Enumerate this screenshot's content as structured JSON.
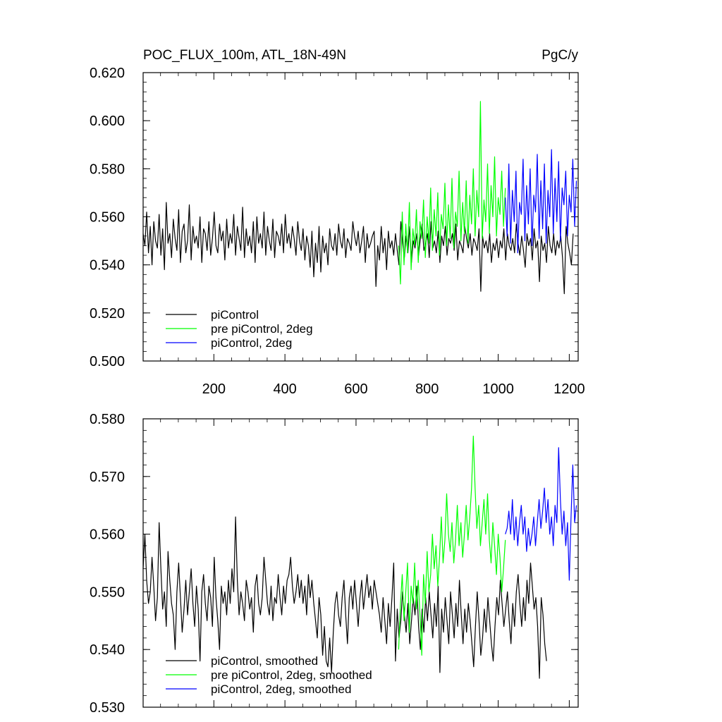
{
  "figure": {
    "title_left": "POC_FLUX_100m, ATL_18N-49N",
    "title_right": "PgC/y"
  },
  "chart_data": [
    {
      "type": "line",
      "title": "POC_FLUX_100m, ATL_18N-49N",
      "units": "PgC/y",
      "xlim": [
        1,
        1225
      ],
      "ylim": [
        0.5,
        0.62
      ],
      "xticks": [
        200,
        400,
        600,
        800,
        1000,
        1200
      ],
      "xtick_labels": [
        "200",
        "400",
        "600",
        "800",
        "1000",
        "1200"
      ],
      "yticks": [
        0.5,
        0.52,
        0.54,
        0.56,
        0.58,
        0.6,
        0.62
      ],
      "ytick_labels": [
        "0.500",
        "0.520",
        "0.540",
        "0.560",
        "0.580",
        "0.600",
        "0.620"
      ],
      "grid": false,
      "legend_position": "bottom-left",
      "series": [
        {
          "name": "piControl",
          "color": "#000000",
          "x_start": 1,
          "x_end": 1220,
          "step": 5,
          "values": [
            0.553,
            0.548,
            0.562,
            0.545,
            0.556,
            0.54,
            0.558,
            0.55,
            0.547,
            0.561,
            0.544,
            0.555,
            0.538,
            0.566,
            0.549,
            0.553,
            0.543,
            0.559,
            0.551,
            0.546,
            0.563,
            0.541,
            0.554,
            0.557,
            0.545,
            0.55,
            0.565,
            0.542,
            0.556,
            0.549,
            0.552,
            0.547,
            0.56,
            0.541,
            0.555,
            0.553,
            0.546,
            0.558,
            0.544,
            0.551,
            0.562,
            0.548,
            0.545,
            0.557,
            0.55,
            0.554,
            0.542,
            0.559,
            0.547,
            0.553,
            0.549,
            0.561,
            0.544,
            0.556,
            0.551,
            0.546,
            0.564,
            0.543,
            0.555,
            0.548,
            0.552,
            0.545,
            0.558,
            0.541,
            0.56,
            0.549,
            0.553,
            0.547,
            0.562,
            0.544,
            0.556,
            0.55,
            0.546,
            0.559,
            0.543,
            0.554,
            0.552,
            0.548,
            0.557,
            0.545,
            0.561,
            0.549,
            0.553,
            0.547,
            0.556,
            0.551,
            0.544,
            0.558,
            0.55,
            0.546,
            0.555,
            0.542,
            0.552,
            0.548,
            0.539,
            0.554,
            0.535,
            0.549,
            0.541,
            0.556,
            0.537,
            0.552,
            0.545,
            0.549,
            0.54,
            0.555,
            0.548,
            0.546,
            0.553,
            0.544,
            0.557,
            0.55,
            0.547,
            0.555,
            0.543,
            0.551,
            0.549,
            0.546,
            0.558,
            0.552,
            0.548,
            0.554,
            0.545,
            0.55,
            0.556,
            0.541,
            0.553,
            0.547,
            0.549,
            0.552,
            0.554,
            0.531,
            0.548,
            0.542,
            0.556,
            0.545,
            0.551,
            0.538,
            0.554,
            0.547,
            0.55,
            0.544,
            0.553,
            0.546,
            0.54,
            0.558,
            0.549,
            0.543,
            0.552,
            0.545,
            0.556,
            0.541,
            0.55,
            0.547,
            0.553,
            0.544,
            0.551,
            0.557,
            0.546,
            0.549,
            0.553,
            0.543,
            0.558,
            0.547,
            0.55,
            0.545,
            0.554,
            0.541,
            0.552,
            0.548,
            0.556,
            0.544,
            0.551,
            0.549,
            0.553,
            0.546,
            0.557,
            0.542,
            0.55,
            0.548,
            0.545,
            0.556,
            0.551,
            0.547,
            0.553,
            0.544,
            0.551,
            0.549,
            0.546,
            0.555,
            0.529,
            0.552,
            0.547,
            0.55,
            0.545,
            0.553,
            0.541,
            0.549,
            0.546,
            0.551,
            0.543,
            0.55,
            0.547,
            0.555,
            0.542,
            0.553,
            0.548,
            0.546,
            0.551,
            0.545,
            0.557,
            0.549,
            0.544,
            0.552,
            0.546,
            0.539,
            0.553,
            0.548,
            0.551,
            0.542,
            0.555,
            0.547,
            0.55,
            0.533,
            0.552,
            0.546,
            0.549,
            0.541,
            0.556,
            0.548,
            0.545,
            0.553,
            0.544,
            0.55,
            0.547,
            0.552,
            0.543,
            0.528,
            0.556,
            0.549,
            0.545,
            0.54,
            0.553
          ]
        },
        {
          "name": "pre piControl, 2deg",
          "color": "#00ff00",
          "x_start": 720,
          "x_end": 1020,
          "step": 5,
          "values": [
            0.548,
            0.532,
            0.562,
            0.54,
            0.557,
            0.545,
            0.566,
            0.538,
            0.555,
            0.548,
            0.563,
            0.541,
            0.558,
            0.551,
            0.567,
            0.543,
            0.56,
            0.549,
            0.572,
            0.546,
            0.563,
            0.552,
            0.57,
            0.544,
            0.561,
            0.555,
            0.574,
            0.548,
            0.565,
            0.551,
            0.576,
            0.547,
            0.562,
            0.556,
            0.579,
            0.55,
            0.566,
            0.553,
            0.575,
            0.549,
            0.569,
            0.557,
            0.58,
            0.552,
            0.571,
            0.56,
            0.608,
            0.551,
            0.567,
            0.558,
            0.582,
            0.553,
            0.573,
            0.56,
            0.585,
            0.552,
            0.568,
            0.561,
            0.579,
            0.556,
            0.572
          ]
        },
        {
          "name": "piControl, 2deg",
          "color": "#0000ff",
          "x_start": 1020,
          "x_end": 1220,
          "step": 5,
          "values": [
            0.568,
            0.552,
            0.582,
            0.549,
            0.571,
            0.558,
            0.579,
            0.545,
            0.566,
            0.561,
            0.584,
            0.55,
            0.573,
            0.557,
            0.58,
            0.548,
            0.569,
            0.562,
            0.586,
            0.551,
            0.575,
            0.555,
            0.582,
            0.549,
            0.571,
            0.56,
            0.588,
            0.553,
            0.576,
            0.558,
            0.583,
            0.55,
            0.572,
            0.565,
            0.579,
            0.552,
            0.569,
            0.562,
            0.584,
            0.556,
            0.575
          ]
        }
      ],
      "legend": [
        {
          "label": "piControl",
          "color": "#000000"
        },
        {
          "label": "pre piControl, 2deg",
          "color": "#00ff00"
        },
        {
          "label": "piControl, 2deg",
          "color": "#0000ff"
        }
      ]
    },
    {
      "type": "line",
      "xlim": [
        1,
        1225
      ],
      "ylim": [
        0.53,
        0.58
      ],
      "xticks": [
        200,
        400,
        600,
        800,
        1000,
        1200
      ],
      "yticks": [
        0.53,
        0.54,
        0.55,
        0.56,
        0.57,
        0.58
      ],
      "ytick_labels": [
        "0.530",
        "0.540",
        "0.550",
        "0.560",
        "0.570",
        "0.580"
      ],
      "grid": false,
      "legend_position": "bottom-left",
      "series": [
        {
          "name": "piControl, smoothed",
          "color": "#000000",
          "x_start": 1,
          "x_end": 1220,
          "step": 5,
          "values": [
            0.554,
            0.56,
            0.552,
            0.548,
            0.55,
            0.556,
            0.551,
            0.545,
            0.549,
            0.562,
            0.554,
            0.547,
            0.55,
            0.544,
            0.557,
            0.552,
            0.548,
            0.546,
            0.54,
            0.55,
            0.555,
            0.549,
            0.543,
            0.547,
            0.552,
            0.546,
            0.55,
            0.554,
            0.548,
            0.544,
            0.551,
            0.547,
            0.538,
            0.55,
            0.553,
            0.548,
            0.545,
            0.551,
            0.549,
            0.544,
            0.556,
            0.549,
            0.545,
            0.54,
            0.551,
            0.548,
            0.55,
            0.546,
            0.552,
            0.548,
            0.554,
            0.55,
            0.563,
            0.552,
            0.546,
            0.55,
            0.548,
            0.545,
            0.552,
            0.55,
            0.547,
            0.549,
            0.543,
            0.551,
            0.553,
            0.548,
            0.546,
            0.549,
            0.556,
            0.552,
            0.548,
            0.546,
            0.551,
            0.545,
            0.549,
            0.548,
            0.553,
            0.549,
            0.546,
            0.551,
            0.548,
            0.552,
            0.553,
            0.556,
            0.551,
            0.548,
            0.55,
            0.553,
            0.549,
            0.552,
            0.548,
            0.551,
            0.546,
            0.553,
            0.549,
            0.552,
            0.548,
            0.545,
            0.542,
            0.549,
            0.546,
            0.539,
            0.544,
            0.538,
            0.537,
            0.542,
            0.536,
            0.543,
            0.548,
            0.55,
            0.546,
            0.544,
            0.549,
            0.552,
            0.546,
            0.541,
            0.549,
            0.551,
            0.547,
            0.552,
            0.548,
            0.544,
            0.549,
            0.552,
            0.547,
            0.55,
            0.553,
            0.549,
            0.551,
            0.547,
            0.552,
            0.55,
            0.548,
            0.546,
            0.543,
            0.549,
            0.545,
            0.541,
            0.548,
            0.544,
            0.549,
            0.555,
            0.538,
            0.547,
            0.542,
            0.545,
            0.55,
            0.546,
            0.543,
            0.548,
            0.541,
            0.545,
            0.549,
            0.546,
            0.551,
            0.544,
            0.54,
            0.547,
            0.543,
            0.549,
            0.545,
            0.55,
            0.546,
            0.542,
            0.548,
            0.544,
            0.551,
            0.536,
            0.547,
            0.543,
            0.549,
            0.545,
            0.541,
            0.55,
            0.546,
            0.542,
            0.548,
            0.544,
            0.552,
            0.546,
            0.541,
            0.547,
            0.543,
            0.548,
            0.545,
            0.541,
            0.537,
            0.544,
            0.55,
            0.545,
            0.539,
            0.542,
            0.547,
            0.543,
            0.549,
            0.545,
            0.541,
            0.538,
            0.544,
            0.549,
            0.546,
            0.552,
            0.548,
            0.544,
            0.547,
            0.55,
            0.545,
            0.541,
            0.548,
            0.544,
            0.55,
            0.553,
            0.548,
            0.544,
            0.549,
            0.545,
            0.552,
            0.548,
            0.555,
            0.551,
            0.547,
            0.549,
            0.544,
            0.535,
            0.549,
            0.546,
            0.541,
            0.538
          ]
        },
        {
          "name": "pre piControl, 2deg, smoothed",
          "color": "#00ff00",
          "x_start": 720,
          "x_end": 1020,
          "step": 5,
          "values": [
            0.54,
            0.548,
            0.553,
            0.545,
            0.55,
            0.555,
            0.543,
            0.551,
            0.548,
            0.555,
            0.547,
            0.552,
            0.546,
            0.539,
            0.553,
            0.548,
            0.557,
            0.55,
            0.553,
            0.56,
            0.554,
            0.558,
            0.551,
            0.556,
            0.563,
            0.555,
            0.559,
            0.567,
            0.56,
            0.557,
            0.562,
            0.555,
            0.559,
            0.565,
            0.558,
            0.562,
            0.556,
            0.56,
            0.565,
            0.559,
            0.563,
            0.568,
            0.577,
            0.568,
            0.561,
            0.565,
            0.558,
            0.562,
            0.566,
            0.56,
            0.567,
            0.559,
            0.555,
            0.562,
            0.558,
            0.553,
            0.56,
            0.556,
            0.55,
            0.554,
            0.559
          ]
        },
        {
          "name": "piControl, 2deg, smoothed",
          "color": "#0000ff",
          "x_start": 1020,
          "x_end": 1220,
          "step": 5,
          "values": [
            0.56,
            0.561,
            0.564,
            0.56,
            0.566,
            0.559,
            0.563,
            0.558,
            0.562,
            0.565,
            0.56,
            0.563,
            0.557,
            0.561,
            0.558,
            0.56,
            0.563,
            0.558,
            0.562,
            0.566,
            0.561,
            0.564,
            0.568,
            0.562,
            0.566,
            0.56,
            0.563,
            0.558,
            0.565,
            0.562,
            0.575,
            0.566,
            0.56,
            0.564,
            0.558,
            0.562,
            0.552,
            0.563,
            0.572,
            0.562,
            0.565
          ]
        }
      ],
      "legend": [
        {
          "label": "piControl, smoothed",
          "color": "#000000"
        },
        {
          "label": "pre piControl, 2deg, smoothed",
          "color": "#00ff00"
        },
        {
          "label": "piControl, 2deg, smoothed",
          "color": "#0000ff"
        }
      ]
    }
  ]
}
